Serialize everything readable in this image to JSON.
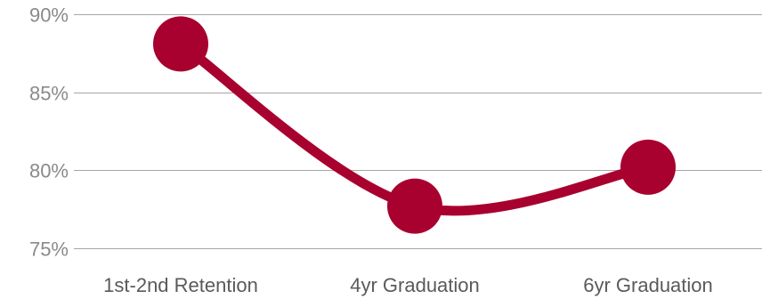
{
  "chart_data": {
    "type": "line",
    "categories": [
      "1st-2nd Retention",
      "4yr Graduation",
      "6yr Graduation"
    ],
    "series": [
      {
        "values": [
          88.1,
          77.7,
          80.2
        ]
      }
    ],
    "ylim": [
      75,
      90
    ],
    "yticks": [
      90,
      85,
      80,
      75
    ],
    "ytick_labels": [
      "90%",
      "85%",
      "80%",
      "75%"
    ],
    "smooth": true,
    "grid": true,
    "legend": "none",
    "colors": {
      "series": "#a8002f",
      "grid": "#a6a6a6",
      "tick_text": "#8a8a8a",
      "category_text": "#5a5a5a"
    }
  }
}
